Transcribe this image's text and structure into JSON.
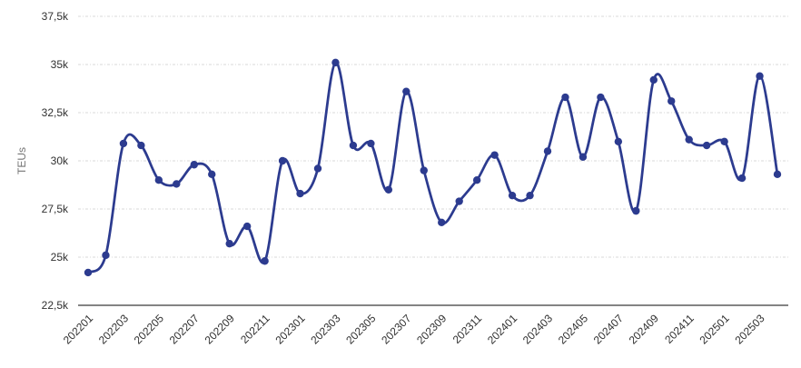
{
  "chart_data": {
    "type": "line",
    "title": "",
    "xlabel": "",
    "ylabel": "TEUs",
    "categories": [
      "202201",
      "202202",
      "202203",
      "202204",
      "202205",
      "202206",
      "202207",
      "202208",
      "202209",
      "202210",
      "202211",
      "202212",
      "202301",
      "202302",
      "202303",
      "202304",
      "202305",
      "202306",
      "202307",
      "202308",
      "202309",
      "202310",
      "202311",
      "202312",
      "202401",
      "202402",
      "202403",
      "202404",
      "202405",
      "202406",
      "202407",
      "202408",
      "202409",
      "202410",
      "202411",
      "202412",
      "202501",
      "202502",
      "202503",
      "202504"
    ],
    "series": [
      {
        "name": "TEUs",
        "values": [
          24200,
          25100,
          30900,
          30800,
          29000,
          28800,
          29800,
          29300,
          25700,
          26600,
          24800,
          30000,
          28300,
          29600,
          35100,
          30800,
          30900,
          28500,
          33600,
          29500,
          26800,
          27900,
          29000,
          30300,
          28200,
          28200,
          30500,
          33300,
          30200,
          33300,
          31000,
          27400,
          34200,
          33100,
          31100,
          30800,
          31000,
          29100,
          34400,
          29300
        ]
      }
    ],
    "ylim": [
      22500,
      37500
    ],
    "ytick_values": [
      22500,
      25000,
      27500,
      30000,
      32500,
      35000,
      37500
    ],
    "ytick_labels": [
      "22,5k",
      "25k",
      "27,5k",
      "30k",
      "32,5k",
      "35k",
      "37,5k"
    ],
    "xtick_every": 2,
    "x_label_rotation_deg": -45,
    "grid": "horizontal-dotted",
    "legend": "none",
    "marker": "circle",
    "smooth": true,
    "colors": {
      "line": "#2c3b8f",
      "marker": "#2c3b8f",
      "gridline": "#d9d9d9",
      "axis_line": "#3a3a3a",
      "tick_label": "#303030",
      "axis_title": "#767676",
      "background": "#ffffff"
    }
  }
}
